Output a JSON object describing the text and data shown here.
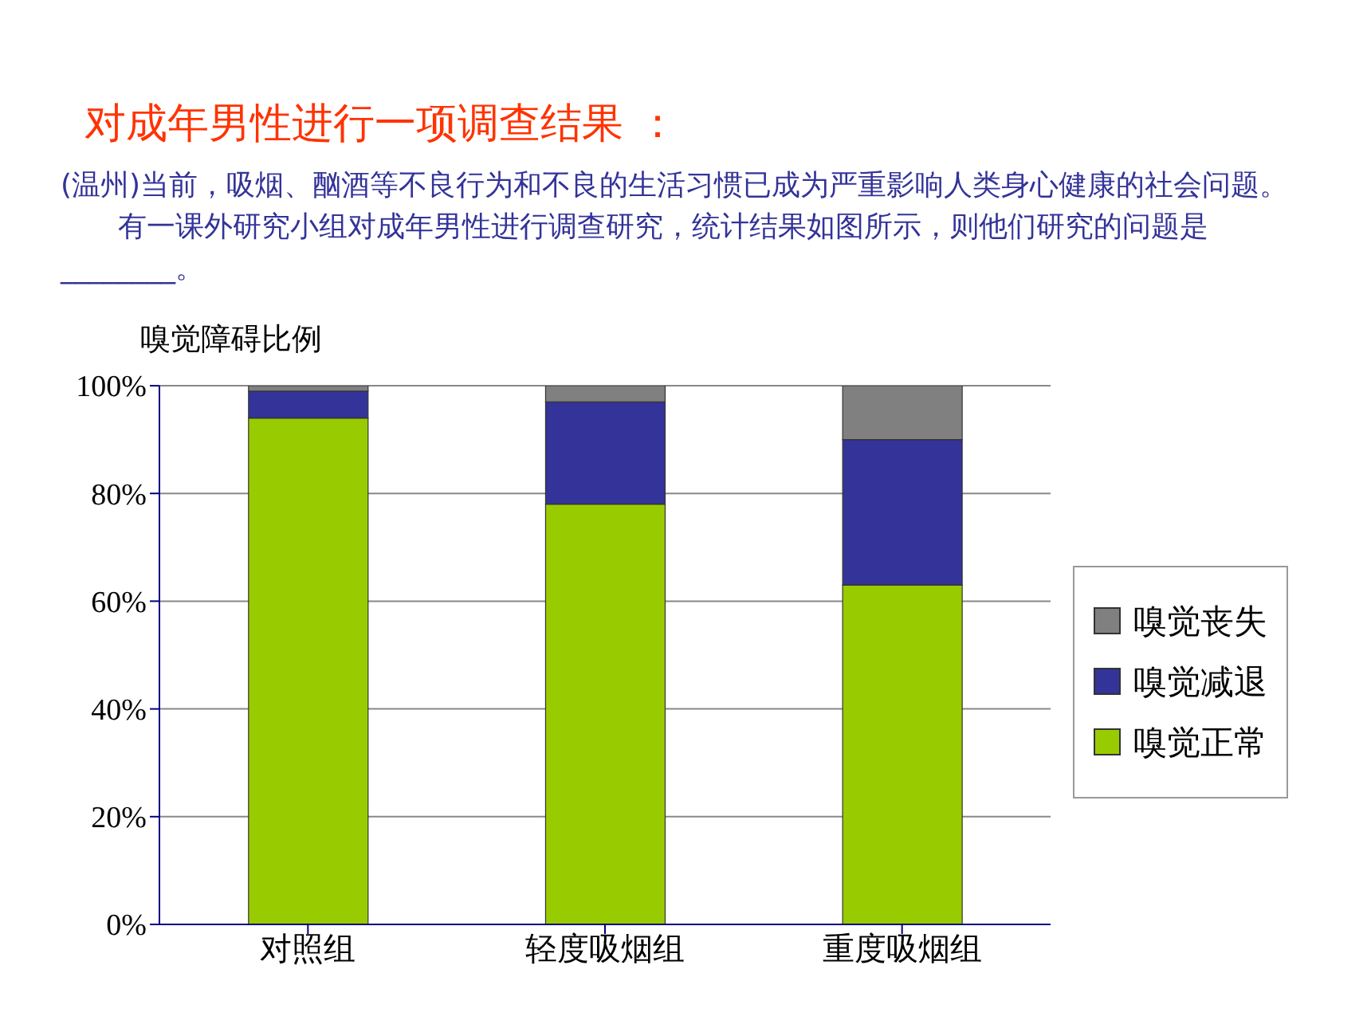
{
  "chart_data": {
    "type": "bar",
    "title": "对成年男性进行一项调查结果 ：",
    "ylabel": "嗅觉障碍比例",
    "annotations": [
      "(温州)当前，吸烟、酗酒等不良行为和不良的生活习惯已成为严重影响人类身心健康的社会问题。",
      "有一课外研究小组对成年男性进行调查研究，统计结果如图所示，则他们研究的问题是________。"
    ],
    "categories": [
      "对照组",
      "轻度吸烟组",
      "重度吸烟组"
    ],
    "series": [
      {
        "name": "嗅觉正常",
        "color": "#99cc00",
        "values": [
          94,
          78,
          63
        ]
      },
      {
        "name": "嗅觉减退",
        "color": "#333399",
        "values": [
          5,
          19,
          27
        ]
      },
      {
        "name": "嗅觉丧失",
        "color": "#808080",
        "values": [
          1,
          3,
          10
        ]
      }
    ],
    "stacked": true,
    "ylim": [
      0,
      100
    ],
    "yticks": [
      {
        "value": 0,
        "label": "0%"
      },
      {
        "value": 20,
        "label": "20%"
      },
      {
        "value": 40,
        "label": "40%"
      },
      {
        "value": 60,
        "label": "60%"
      },
      {
        "value": 80,
        "label": "80%"
      },
      {
        "value": 100,
        "label": "100%"
      }
    ],
    "grid": "y",
    "legend": "right"
  }
}
